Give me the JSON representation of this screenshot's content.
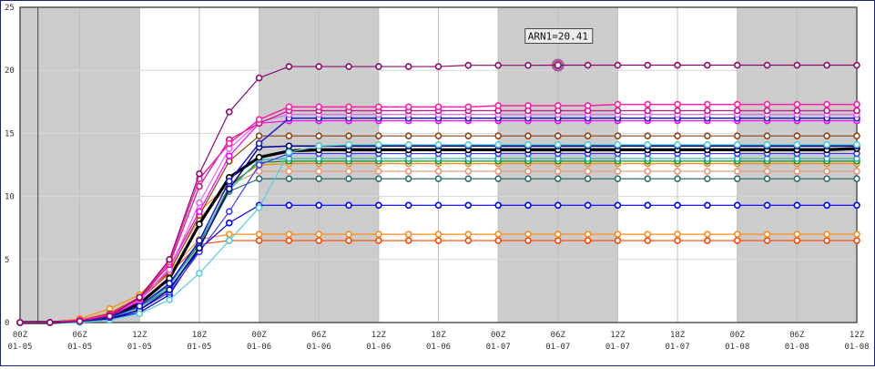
{
  "chart_data": {
    "type": "line",
    "ylim": [
      0,
      25
    ],
    "yticks": [
      "0",
      "5",
      "10",
      "15",
      "20",
      "25"
    ],
    "x_labels": [
      {
        "hour": "00Z",
        "date": "01-05"
      },
      {
        "hour": "06Z",
        "date": "01-05"
      },
      {
        "hour": "12Z",
        "date": "01-05"
      },
      {
        "hour": "18Z",
        "date": "01-05"
      },
      {
        "hour": "00Z",
        "date": "01-06"
      },
      {
        "hour": "06Z",
        "date": "01-06"
      },
      {
        "hour": "12Z",
        "date": "01-06"
      },
      {
        "hour": "18Z",
        "date": "01-06"
      },
      {
        "hour": "00Z",
        "date": "01-07"
      },
      {
        "hour": "06Z",
        "date": "01-07"
      },
      {
        "hour": "12Z",
        "date": "01-07"
      },
      {
        "hour": "18Z",
        "date": "01-07"
      },
      {
        "hour": "00Z",
        "date": "01-08"
      },
      {
        "hour": "06Z",
        "date": "01-08"
      },
      {
        "hour": "12Z",
        "date": "01-08"
      }
    ],
    "x_hours": [
      0,
      3,
      6,
      9,
      12,
      15,
      18,
      21,
      24,
      27,
      30,
      33,
      36,
      39,
      42,
      45,
      48,
      51,
      54,
      57,
      60,
      63,
      66,
      69,
      72,
      75,
      78,
      81,
      84
    ],
    "night_bands_hours": [
      [
        0,
        12
      ],
      [
        24,
        36
      ],
      [
        48,
        60
      ],
      [
        72,
        84
      ]
    ],
    "tooltip": {
      "text": "ARN1=20.41",
      "series_index": 0,
      "hour": 54
    },
    "series": [
      {
        "color": "#8b0a6e",
        "width": 1.2,
        "values": [
          0,
          0,
          0.1,
          0.5,
          2,
          5,
          11.8,
          16.7,
          19.4,
          20.3,
          20.3,
          20.3,
          20.3,
          20.3,
          20.3,
          20.4,
          20.4,
          20.4,
          20.41,
          20.41,
          20.41,
          20.41,
          20.41,
          20.41,
          20.41,
          20.41,
          20.41,
          20.41,
          20.41
        ]
      },
      {
        "color": "#ff1fa8",
        "width": 1.5,
        "values": [
          0,
          0,
          0.2,
          0.6,
          2,
          4.8,
          11.4,
          14.2,
          16.1,
          17.1,
          17.1,
          17.1,
          17.1,
          17.1,
          17.1,
          17.1,
          17.2,
          17.2,
          17.2,
          17.2,
          17.3,
          17.3,
          17.3,
          17.3,
          17.3,
          17.3,
          17.3,
          17.3,
          17.3
        ]
      },
      {
        "color": "#c71585",
        "width": 1.2,
        "values": [
          0,
          0,
          0.2,
          0.6,
          1.9,
          4.6,
          10.8,
          14.5,
          15.8,
          16.8,
          16.8,
          16.8,
          16.8,
          16.8,
          16.8,
          16.8,
          16.8,
          16.8,
          16.8,
          16.8,
          16.8,
          16.8,
          16.8,
          16.8,
          16.8,
          16.8,
          16.8,
          16.8,
          16.8
        ]
      },
      {
        "color": "#e066ff",
        "width": 1.2,
        "values": [
          0,
          0,
          0.2,
          0.6,
          1.8,
          4.2,
          9.5,
          13.8,
          15.9,
          16.5,
          16.5,
          16.5,
          16.5,
          16.5,
          16.5,
          16.5,
          16.5,
          16.5,
          16.5,
          16.5,
          16.5,
          16.5,
          16.5,
          16.5,
          16.5,
          16.5,
          16.5,
          16.5,
          16.5
        ]
      },
      {
        "color": "#1a1ad4",
        "width": 1.5,
        "values": [
          0,
          0,
          0.1,
          0.4,
          1.3,
          3.1,
          6.5,
          11.2,
          14.2,
          16.2,
          16.2,
          16.2,
          16.2,
          16.2,
          16.2,
          16.2,
          16.2,
          16.2,
          16.2,
          16.2,
          16.2,
          16.2,
          16.2,
          16.2,
          16.2,
          16.2,
          16.2,
          16.2,
          16.2
        ]
      },
      {
        "color": "#ff00ff",
        "width": 1.2,
        "values": [
          0,
          0,
          0.2,
          0.5,
          1.7,
          4.3,
          8.8,
          13.2,
          15.8,
          16.0,
          16.0,
          16.0,
          16.0,
          16.0,
          16.0,
          16.0,
          16.0,
          16.0,
          16.0,
          16.0,
          16.0,
          16.0,
          16.0,
          16.0,
          16.0,
          16.0,
          16.0,
          16.0,
          16.0
        ]
      },
      {
        "color": "#8b4513",
        "width": 1.2,
        "values": [
          0,
          0,
          0.2,
          0.7,
          2.0,
          4.0,
          8.5,
          12.8,
          14.8,
          14.8,
          14.8,
          14.8,
          14.8,
          14.8,
          14.8,
          14.8,
          14.8,
          14.8,
          14.8,
          14.8,
          14.8,
          14.8,
          14.8,
          14.8,
          14.8,
          14.8,
          14.8,
          14.8,
          14.8
        ]
      },
      {
        "color": "#4fd1d9",
        "width": 1.2,
        "values": [
          0,
          0,
          0.0,
          0.2,
          0.7,
          1.8,
          3.9,
          6.5,
          9.1,
          13.5,
          14.0,
          14.1,
          14.1,
          14.1,
          14.1,
          14.1,
          14.1,
          14.1,
          14.1,
          14.1,
          14.1,
          14.1,
          14.1,
          14.1,
          14.1,
          14.1,
          14.1,
          14.1,
          14.1
        ]
      },
      {
        "color": "#00008b",
        "width": 1.5,
        "values": [
          0,
          0,
          0.1,
          0.3,
          1.0,
          2.6,
          5.9,
          10.6,
          13.9,
          14.0,
          14.0,
          14.0,
          14.0,
          14.0,
          14.0,
          14.0,
          14.0,
          14.0,
          14.0,
          14.0,
          14.0,
          14.0,
          14.0,
          14.0,
          14.0,
          14.0,
          14.0,
          14.0,
          14.0
        ]
      },
      {
        "color": "#000000",
        "width": 3.2,
        "values": [
          0,
          0,
          0.1,
          0.5,
          1.5,
          3.5,
          7.8,
          11.5,
          13.1,
          13.6,
          13.7,
          13.7,
          13.7,
          13.7,
          13.7,
          13.7,
          13.7,
          13.7,
          13.7,
          13.7,
          13.7,
          13.7,
          13.7,
          13.7,
          13.7,
          13.7,
          13.7,
          13.7,
          13.8
        ]
      },
      {
        "color": "#3a3aff",
        "width": 1.2,
        "values": [
          0,
          0,
          0.1,
          0.3,
          1.0,
          2.4,
          5.6,
          8.8,
          12.5,
          13.4,
          13.4,
          13.4,
          13.4,
          13.4,
          13.4,
          13.4,
          13.4,
          13.4,
          13.4,
          13.4,
          13.4,
          13.4,
          13.4,
          13.4,
          13.4,
          13.4,
          13.4,
          13.4,
          13.4
        ]
      },
      {
        "color": "#20b2aa",
        "width": 1.2,
        "values": [
          0,
          0,
          0.1,
          0.4,
          1.2,
          2.9,
          6.4,
          10.5,
          12.9,
          13.0,
          13.0,
          13.0,
          13.0,
          13.0,
          13.0,
          13.0,
          13.0,
          13.0,
          13.0,
          13.0,
          13.0,
          13.0,
          13.0,
          13.0,
          13.0,
          13.0,
          13.0,
          13.0,
          13.0
        ]
      },
      {
        "color": "#228b22",
        "width": 1.2,
        "values": [
          0,
          0,
          0.1,
          0.4,
          1.3,
          3.0,
          6.2,
          10.8,
          12.7,
          12.8,
          12.8,
          12.8,
          12.8,
          12.8,
          12.8,
          12.8,
          12.8,
          12.8,
          12.8,
          12.8,
          12.8,
          12.8,
          12.8,
          12.8,
          12.8,
          12.8,
          12.8,
          12.8,
          12.8
        ]
      },
      {
        "color": "#ff8c00",
        "width": 1.2,
        "values": [
          0,
          0,
          0.3,
          1.1,
          2.2,
          4.5,
          8.8,
          11.0,
          12.5,
          12.6,
          12.6,
          12.6,
          12.6,
          12.6,
          12.6,
          12.6,
          12.6,
          12.6,
          12.6,
          12.6,
          12.6,
          12.6,
          12.6,
          12.6,
          12.6,
          12.6,
          12.6,
          12.6,
          12.6
        ]
      },
      {
        "color": "#e9967a",
        "width": 1.2,
        "values": [
          0,
          0,
          0.2,
          0.8,
          1.9,
          4.2,
          8.2,
          10.9,
          12.0,
          12.0,
          12.0,
          12.0,
          12.0,
          12.0,
          12.0,
          12.0,
          12.0,
          12.0,
          12.0,
          12.0,
          12.0,
          12.0,
          12.0,
          12.0,
          12.0,
          12.0,
          12.0,
          12.0,
          12.0
        ]
      },
      {
        "color": "#2f6f6f",
        "width": 1.2,
        "values": [
          0,
          0,
          0.1,
          0.4,
          1.2,
          2.7,
          6.0,
          10.4,
          11.4,
          11.4,
          11.4,
          11.4,
          11.4,
          11.4,
          11.4,
          11.4,
          11.4,
          11.4,
          11.4,
          11.4,
          11.4,
          11.4,
          11.4,
          11.4,
          11.4,
          11.4,
          11.4,
          11.4,
          11.4
        ]
      },
      {
        "color": "#0000ff",
        "width": 1.2,
        "values": [
          0,
          0,
          0.1,
          0.3,
          0.8,
          2.2,
          5.8,
          7.9,
          9.3,
          9.3,
          9.3,
          9.3,
          9.3,
          9.3,
          9.3,
          9.3,
          9.3,
          9.3,
          9.3,
          9.3,
          9.3,
          9.3,
          9.3,
          9.3,
          9.3,
          9.3,
          9.3,
          9.3,
          9.3
        ]
      },
      {
        "color": "#ff8c1a",
        "width": 1.2,
        "values": [
          0,
          0,
          0.2,
          0.8,
          2.0,
          4.1,
          6.6,
          7.0,
          7.0,
          7.0,
          7.0,
          7.0,
          7.0,
          7.0,
          7.0,
          7.0,
          7.0,
          7.0,
          7.0,
          7.0,
          7.0,
          7.0,
          7.0,
          7.0,
          7.0,
          7.0,
          7.0,
          7.0,
          7.0
        ]
      },
      {
        "color": "#ff4500",
        "width": 1.2,
        "values": [
          0,
          0,
          0.2,
          0.7,
          1.8,
          3.9,
          6.2,
          6.5,
          6.5,
          6.5,
          6.5,
          6.5,
          6.5,
          6.5,
          6.5,
          6.5,
          6.5,
          6.5,
          6.5,
          6.5,
          6.5,
          6.5,
          6.5,
          6.5,
          6.5,
          6.5,
          6.5,
          6.5,
          6.5
        ]
      }
    ]
  }
}
